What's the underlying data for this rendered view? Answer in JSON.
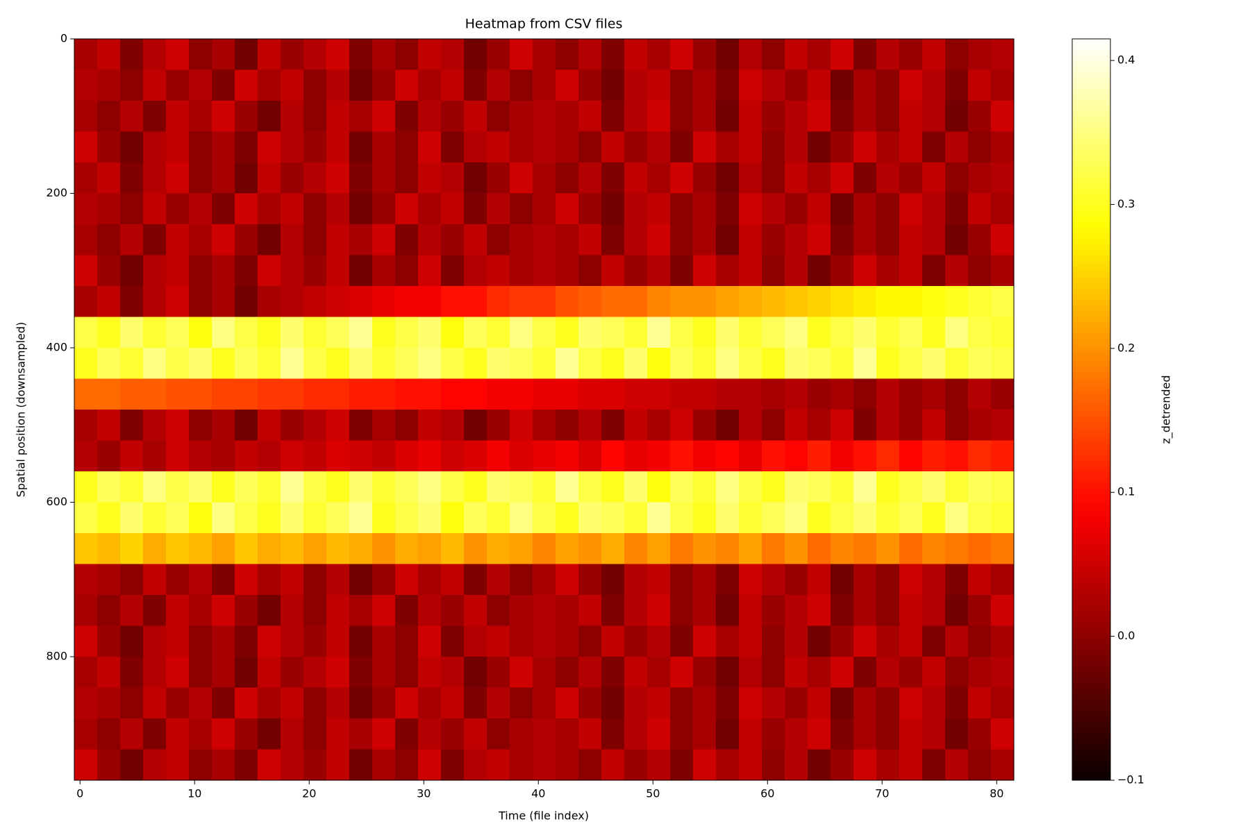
{
  "chart_data": {
    "type": "heatmap",
    "title": "Heatmap from CSV files",
    "xlabel": "Time (file index)",
    "ylabel": "Spatial position (downsampled)",
    "colorbar_label": "z_detrended",
    "colormap": "hot",
    "y_inverted": true,
    "xlim": [
      -0.5,
      81.5
    ],
    "xticks": [
      0,
      10,
      20,
      30,
      40,
      50,
      60,
      70,
      80
    ],
    "ylim": [
      0,
      960
    ],
    "yticks": [
      0,
      200,
      400,
      600,
      800
    ],
    "zlim": [
      -0.1,
      0.415
    ],
    "zticks": [
      {
        "value": -0.1,
        "label": "−0.1"
      },
      {
        "value": 0,
        "label": "0.0"
      },
      0.1,
      0.2,
      0.3,
      0.4
    ],
    "x": [
      0.5,
      2.5,
      4.5,
      6.5,
      8.5,
      10.5,
      12.5,
      14.5,
      16.5,
      18.5,
      20.5,
      22.5,
      24.5,
      26.5,
      28.5,
      30.5,
      32.5,
      34.5,
      36.5,
      38.5,
      40.5,
      42.5,
      44.5,
      46.5,
      48.5,
      50.5,
      52.5,
      54.5,
      56.5,
      58.5,
      60.5,
      62.5,
      64.5,
      66.5,
      68.5,
      70.5,
      72.5,
      74.5,
      76.5,
      78.5,
      80.5
    ],
    "y": [
      20,
      60,
      100,
      140,
      180,
      220,
      260,
      300,
      340,
      380,
      420,
      460,
      500,
      540,
      580,
      620,
      660,
      700,
      740,
      780,
      820,
      860,
      900,
      940
    ],
    "values": [
      [
        0.02,
        0.04,
        -0.01,
        0.03,
        0.05,
        0.0,
        0.02,
        -0.02,
        0.04,
        0.01,
        0.03,
        0.05,
        -0.01,
        0.02,
        0.0,
        0.04,
        0.03,
        -0.02,
        0.01,
        0.05,
        0.02,
        0.0,
        0.03,
        -0.01,
        0.04,
        0.02,
        0.05,
        0.01,
        -0.02,
        0.03,
        0.0,
        0.04,
        0.02,
        0.05,
        -0.01,
        0.03,
        0.01,
        0.04,
        0.0,
        0.02,
        0.03
      ],
      [
        0.03,
        0.02,
        0.0,
        0.04,
        0.01,
        0.03,
        -0.01,
        0.05,
        0.02,
        0.04,
        0.0,
        0.03,
        -0.02,
        0.01,
        0.05,
        0.02,
        0.04,
        -0.01,
        0.03,
        0.0,
        0.02,
        0.05,
        0.01,
        -0.02,
        0.03,
        0.04,
        0.0,
        0.02,
        -0.01,
        0.05,
        0.03,
        0.01,
        0.04,
        -0.02,
        0.02,
        0.0,
        0.05,
        0.03,
        -0.01,
        0.04,
        0.02
      ],
      [
        0.02,
        0.0,
        0.03,
        -0.01,
        0.04,
        0.02,
        0.05,
        0.01,
        -0.02,
        0.03,
        0.0,
        0.04,
        0.02,
        0.05,
        -0.01,
        0.03,
        0.01,
        0.04,
        0.0,
        0.02,
        0.03,
        0.02,
        0.04,
        -0.01,
        0.03,
        0.05,
        0.0,
        0.02,
        -0.02,
        0.04,
        0.01,
        0.03,
        0.05,
        -0.01,
        0.02,
        0.0,
        0.04,
        0.03,
        -0.02,
        0.01,
        0.05
      ],
      [
        0.05,
        0.01,
        -0.02,
        0.03,
        0.04,
        0.0,
        0.02,
        -0.01,
        0.05,
        0.03,
        0.01,
        0.04,
        -0.02,
        0.02,
        0.0,
        0.05,
        -0.01,
        0.03,
        0.04,
        0.02,
        0.03,
        0.02,
        0.0,
        0.04,
        0.01,
        0.03,
        -0.01,
        0.05,
        0.02,
        0.04,
        0.0,
        0.03,
        -0.02,
        0.01,
        0.05,
        0.02,
        0.04,
        -0.01,
        0.03,
        0.0,
        0.02
      ],
      [
        0.02,
        0.04,
        -0.01,
        0.03,
        0.05,
        0.0,
        0.02,
        -0.02,
        0.04,
        0.01,
        0.03,
        0.05,
        -0.01,
        0.02,
        0.0,
        0.04,
        0.03,
        -0.02,
        0.01,
        0.05,
        0.02,
        0.0,
        0.03,
        -0.01,
        0.04,
        0.02,
        0.05,
        0.01,
        -0.02,
        0.03,
        0.0,
        0.04,
        0.02,
        0.05,
        -0.01,
        0.03,
        0.01,
        0.04,
        0.0,
        0.02,
        0.03
      ],
      [
        0.03,
        0.02,
        0.0,
        0.04,
        0.01,
        0.03,
        -0.01,
        0.05,
        0.02,
        0.04,
        0.0,
        0.03,
        -0.02,
        0.01,
        0.05,
        0.02,
        0.04,
        -0.01,
        0.03,
        0.0,
        0.02,
        0.05,
        0.01,
        -0.02,
        0.03,
        0.04,
        0.0,
        0.02,
        -0.01,
        0.05,
        0.03,
        0.01,
        0.04,
        -0.02,
        0.02,
        0.0,
        0.05,
        0.03,
        -0.01,
        0.04,
        0.02
      ],
      [
        0.02,
        0.0,
        0.03,
        -0.01,
        0.04,
        0.02,
        0.05,
        0.01,
        -0.02,
        0.03,
        0.0,
        0.04,
        0.02,
        0.05,
        -0.01,
        0.03,
        0.01,
        0.04,
        0.0,
        0.02,
        0.03,
        0.02,
        0.04,
        -0.01,
        0.03,
        0.05,
        0.0,
        0.02,
        -0.02,
        0.04,
        0.01,
        0.03,
        0.05,
        -0.01,
        0.02,
        0.0,
        0.04,
        0.03,
        -0.02,
        0.01,
        0.05
      ],
      [
        0.05,
        0.01,
        -0.02,
        0.03,
        0.04,
        0.0,
        0.02,
        -0.01,
        0.05,
        0.03,
        0.01,
        0.04,
        -0.02,
        0.02,
        0.0,
        0.05,
        -0.01,
        0.03,
        0.04,
        0.02,
        0.03,
        0.02,
        0.0,
        0.04,
        0.01,
        0.03,
        -0.01,
        0.05,
        0.02,
        0.04,
        0.0,
        0.03,
        -0.02,
        0.01,
        0.05,
        0.02,
        0.04,
        -0.01,
        0.03,
        0.0,
        0.02
      ],
      [
        0.02,
        0.04,
        -0.01,
        0.03,
        0.05,
        0.0,
        0.02,
        -0.02,
        0.02,
        0.03,
        0.04,
        0.05,
        0.06,
        0.07,
        0.08,
        0.08,
        0.1,
        0.1,
        0.12,
        0.13,
        0.13,
        0.15,
        0.16,
        0.17,
        0.17,
        0.19,
        0.2,
        0.2,
        0.21,
        0.22,
        0.23,
        0.24,
        0.25,
        0.26,
        0.27,
        0.28,
        0.28,
        0.29,
        0.3,
        0.31,
        0.32
      ],
      [
        0.32,
        0.3,
        0.34,
        0.31,
        0.33,
        0.29,
        0.35,
        0.32,
        0.3,
        0.34,
        0.31,
        0.33,
        0.36,
        0.3,
        0.32,
        0.34,
        0.29,
        0.33,
        0.31,
        0.35,
        0.32,
        0.3,
        0.34,
        0.33,
        0.31,
        0.36,
        0.32,
        0.3,
        0.34,
        0.31,
        0.33,
        0.35,
        0.3,
        0.32,
        0.34,
        0.31,
        0.33,
        0.3,
        0.35,
        0.32,
        0.31
      ],
      [
        0.3,
        0.33,
        0.31,
        0.35,
        0.32,
        0.34,
        0.3,
        0.33,
        0.31,
        0.36,
        0.32,
        0.3,
        0.34,
        0.31,
        0.33,
        0.35,
        0.32,
        0.3,
        0.34,
        0.33,
        0.31,
        0.36,
        0.32,
        0.3,
        0.34,
        0.29,
        0.33,
        0.31,
        0.35,
        0.32,
        0.3,
        0.34,
        0.33,
        0.31,
        0.36,
        0.3,
        0.32,
        0.34,
        0.31,
        0.33,
        0.32
      ],
      [
        0.17,
        0.17,
        0.16,
        0.16,
        0.15,
        0.15,
        0.14,
        0.14,
        0.13,
        0.13,
        0.12,
        0.12,
        0.11,
        0.11,
        0.1,
        0.1,
        0.09,
        0.09,
        0.08,
        0.08,
        0.07,
        0.07,
        0.06,
        0.06,
        0.05,
        0.05,
        0.04,
        0.04,
        0.03,
        0.03,
        0.02,
        0.03,
        0.01,
        0.02,
        0.0,
        0.03,
        0.01,
        0.02,
        0.0,
        0.03,
        0.01
      ],
      [
        0.02,
        0.04,
        -0.01,
        0.03,
        0.05,
        0.0,
        0.02,
        -0.02,
        0.04,
        0.01,
        0.03,
        0.05,
        -0.01,
        0.02,
        0.0,
        0.04,
        0.03,
        -0.02,
        0.01,
        0.05,
        0.02,
        0.0,
        0.03,
        -0.01,
        0.04,
        0.02,
        0.05,
        0.01,
        -0.02,
        0.03,
        0.0,
        0.04,
        0.02,
        0.05,
        -0.01,
        0.03,
        0.01,
        0.04,
        0.0,
        0.02,
        0.03
      ],
      [
        0.03,
        0.01,
        0.04,
        0.02,
        0.05,
        0.03,
        0.02,
        0.04,
        0.03,
        0.05,
        0.04,
        0.06,
        0.05,
        0.04,
        0.06,
        0.07,
        0.05,
        0.06,
        0.08,
        0.06,
        0.07,
        0.08,
        0.06,
        0.09,
        0.07,
        0.08,
        0.1,
        0.08,
        0.09,
        0.07,
        0.1,
        0.09,
        0.11,
        0.08,
        0.1,
        0.12,
        0.09,
        0.11,
        0.1,
        0.12,
        0.11
      ],
      [
        0.3,
        0.33,
        0.31,
        0.35,
        0.32,
        0.34,
        0.3,
        0.33,
        0.31,
        0.36,
        0.32,
        0.3,
        0.34,
        0.31,
        0.33,
        0.35,
        0.32,
        0.3,
        0.34,
        0.33,
        0.31,
        0.36,
        0.32,
        0.3,
        0.34,
        0.29,
        0.33,
        0.31,
        0.35,
        0.32,
        0.3,
        0.34,
        0.33,
        0.31,
        0.36,
        0.3,
        0.32,
        0.34,
        0.31,
        0.33,
        0.32
      ],
      [
        0.32,
        0.3,
        0.34,
        0.31,
        0.33,
        0.29,
        0.35,
        0.32,
        0.3,
        0.34,
        0.31,
        0.33,
        0.36,
        0.3,
        0.32,
        0.34,
        0.29,
        0.33,
        0.31,
        0.35,
        0.32,
        0.3,
        0.34,
        0.33,
        0.31,
        0.36,
        0.32,
        0.3,
        0.34,
        0.31,
        0.33,
        0.35,
        0.3,
        0.32,
        0.34,
        0.31,
        0.33,
        0.3,
        0.35,
        0.32,
        0.31
      ],
      [
        0.24,
        0.23,
        0.25,
        0.22,
        0.24,
        0.23,
        0.21,
        0.24,
        0.22,
        0.23,
        0.21,
        0.23,
        0.22,
        0.2,
        0.22,
        0.21,
        0.23,
        0.2,
        0.22,
        0.21,
        0.19,
        0.21,
        0.2,
        0.22,
        0.19,
        0.21,
        0.18,
        0.2,
        0.19,
        0.21,
        0.18,
        0.2,
        0.17,
        0.19,
        0.18,
        0.2,
        0.17,
        0.19,
        0.18,
        0.17,
        0.18
      ],
      [
        0.03,
        0.02,
        0.0,
        0.04,
        0.01,
        0.03,
        -0.01,
        0.05,
        0.02,
        0.04,
        0.0,
        0.03,
        -0.02,
        0.01,
        0.05,
        0.02,
        0.04,
        -0.01,
        0.03,
        0.0,
        0.02,
        0.05,
        0.01,
        -0.02,
        0.03,
        0.04,
        0.0,
        0.02,
        -0.01,
        0.05,
        0.03,
        0.01,
        0.04,
        -0.02,
        0.02,
        0.0,
        0.05,
        0.03,
        -0.01,
        0.04,
        0.02
      ],
      [
        0.02,
        0.0,
        0.03,
        -0.01,
        0.04,
        0.02,
        0.05,
        0.01,
        -0.02,
        0.03,
        0.0,
        0.04,
        0.02,
        0.05,
        -0.01,
        0.03,
        0.01,
        0.04,
        0.0,
        0.02,
        0.03,
        0.02,
        0.04,
        -0.01,
        0.03,
        0.05,
        0.0,
        0.02,
        -0.02,
        0.04,
        0.01,
        0.03,
        0.05,
        -0.01,
        0.02,
        0.0,
        0.04,
        0.03,
        -0.02,
        0.01,
        0.05
      ],
      [
        0.05,
        0.01,
        -0.02,
        0.03,
        0.04,
        0.0,
        0.02,
        -0.01,
        0.05,
        0.03,
        0.01,
        0.04,
        -0.02,
        0.02,
        0.0,
        0.05,
        -0.01,
        0.03,
        0.04,
        0.02,
        0.03,
        0.02,
        0.0,
        0.04,
        0.01,
        0.03,
        -0.01,
        0.05,
        0.02,
        0.04,
        0.0,
        0.03,
        -0.02,
        0.01,
        0.05,
        0.02,
        0.04,
        -0.01,
        0.03,
        0.0,
        0.02
      ],
      [
        0.02,
        0.04,
        -0.01,
        0.03,
        0.05,
        0.0,
        0.02,
        -0.02,
        0.04,
        0.01,
        0.03,
        0.05,
        -0.01,
        0.02,
        0.0,
        0.04,
        0.03,
        -0.02,
        0.01,
        0.05,
        0.02,
        0.0,
        0.03,
        -0.01,
        0.04,
        0.02,
        0.05,
        0.01,
        -0.02,
        0.03,
        0.0,
        0.04,
        0.02,
        0.05,
        -0.01,
        0.03,
        0.01,
        0.04,
        0.0,
        0.02,
        0.03
      ],
      [
        0.03,
        0.02,
        0.0,
        0.04,
        0.01,
        0.03,
        -0.01,
        0.05,
        0.02,
        0.04,
        0.0,
        0.03,
        -0.02,
        0.01,
        0.05,
        0.02,
        0.04,
        -0.01,
        0.03,
        0.0,
        0.02,
        0.05,
        0.01,
        -0.02,
        0.03,
        0.04,
        0.0,
        0.02,
        -0.01,
        0.05,
        0.03,
        0.01,
        0.04,
        -0.02,
        0.02,
        0.0,
        0.05,
        0.03,
        -0.01,
        0.04,
        0.02
      ],
      [
        0.02,
        0.0,
        0.03,
        -0.01,
        0.04,
        0.02,
        0.05,
        0.01,
        -0.02,
        0.03,
        0.0,
        0.04,
        0.02,
        0.05,
        -0.01,
        0.03,
        0.01,
        0.04,
        0.0,
        0.02,
        0.03,
        0.02,
        0.04,
        -0.01,
        0.03,
        0.05,
        0.0,
        0.02,
        -0.02,
        0.04,
        0.01,
        0.03,
        0.05,
        -0.01,
        0.02,
        0.0,
        0.04,
        0.03,
        -0.02,
        0.01,
        0.05
      ],
      [
        0.05,
        0.01,
        -0.02,
        0.03,
        0.04,
        0.0,
        0.02,
        -0.01,
        0.05,
        0.03,
        0.01,
        0.04,
        -0.02,
        0.02,
        0.0,
        0.05,
        -0.01,
        0.03,
        0.04,
        0.02,
        0.03,
        0.02,
        0.0,
        0.04,
        0.01,
        0.03,
        -0.01,
        0.05,
        0.02,
        0.04,
        0.0,
        0.03,
        -0.02,
        0.01,
        0.05,
        0.02,
        0.04,
        -0.01,
        0.03,
        0.0,
        0.02
      ]
    ]
  }
}
